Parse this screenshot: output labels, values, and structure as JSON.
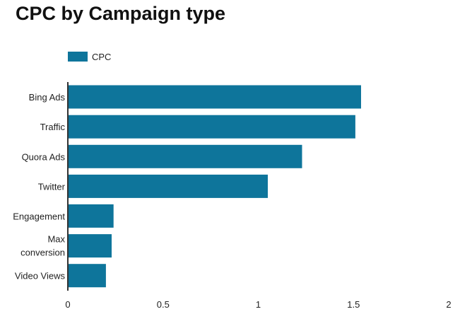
{
  "chart_data": {
    "type": "bar",
    "orientation": "horizontal",
    "title": "CPC by Campaign type",
    "categories": [
      "Bing Ads",
      "Traffic",
      "Quora Ads",
      "Twitter",
      "Engagement",
      "Max conversion",
      "Video Views"
    ],
    "series": [
      {
        "name": "CPC",
        "values": [
          1.54,
          1.51,
          1.23,
          1.05,
          0.24,
          0.23,
          0.2
        ]
      }
    ],
    "xlim": [
      0,
      2
    ],
    "xticks": [
      "0",
      "0.5",
      "1",
      "1.5",
      "2"
    ],
    "legend": "top-left",
    "grid": false,
    "colors": {
      "bar": "#0e759b",
      "axis": "#333333"
    }
  }
}
